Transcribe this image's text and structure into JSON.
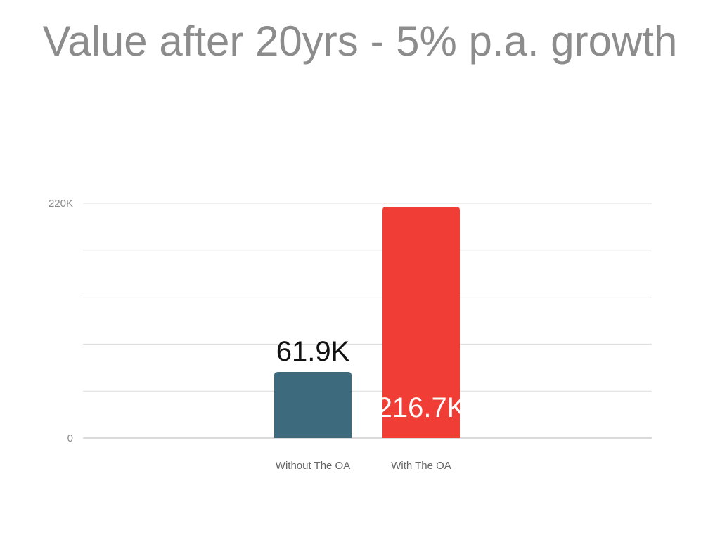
{
  "slide": {
    "title": "Value after 20yrs - 5% p.a. growth"
  },
  "chart_data": {
    "type": "bar",
    "title": "Value after 20yrs - 5% p.a. growth",
    "xlabel": "",
    "ylabel": "",
    "categories": [
      "Without The OA",
      "With The OA"
    ],
    "values": [
      61900,
      216700
    ],
    "data_labels": [
      "61.9K",
      "216.7K"
    ],
    "bar_colors": [
      "#3e6a7d",
      "#f03e36"
    ],
    "data_label_colors": [
      "#111111",
      "#ffffff"
    ],
    "data_label_position": [
      "above",
      "inside"
    ],
    "ylim": [
      0,
      220000
    ],
    "gridline_count": 5,
    "y_ticks": [
      {
        "value": 0,
        "label": "0"
      },
      {
        "value": 220000,
        "label": "220K"
      }
    ],
    "grid": true,
    "legend": "none"
  }
}
